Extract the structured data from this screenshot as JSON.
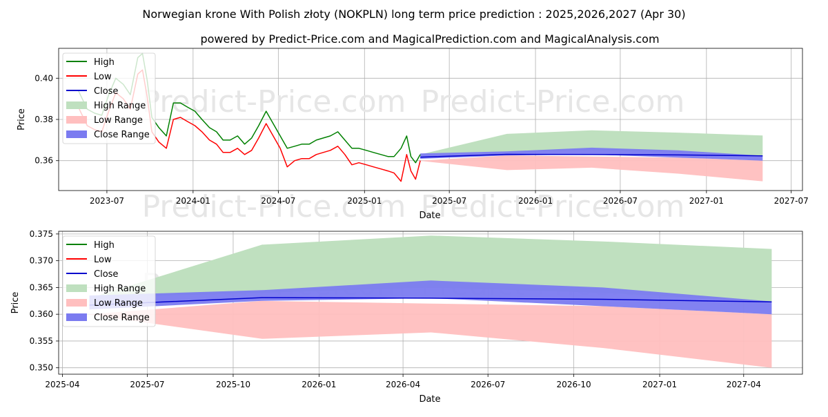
{
  "title": "Norwegian krone With Polish złoty (NOKPLN) long term price prediction : 2025,2026,2027 (Apr 30)",
  "subtitle": "powered by Predict-Price.com and MagicalPrediction.com and MagicalAnalysis.com",
  "watermark": "Predict-Price.com",
  "colors": {
    "high": "#008000",
    "low": "#ff0000",
    "close": "#0000cc",
    "high_range": "#bfe0bf",
    "low_range": "#ffbfbf",
    "close_range": "#7b7bf0",
    "grid": "#b0b0b0"
  },
  "chart_data": [
    {
      "type": "line",
      "panel": "long-term",
      "xlabel": "Date",
      "ylabel": "Price",
      "xlim": [
        "2023-03-20",
        "2027-07-25"
      ],
      "ylim": [
        0.3455,
        0.4145
      ],
      "xticks": [
        {
          "date": "2023-07-01",
          "label": "2023-07"
        },
        {
          "date": "2024-01-01",
          "label": "2024-01"
        },
        {
          "date": "2024-07-01",
          "label": "2024-07"
        },
        {
          "date": "2025-01-01",
          "label": "2025-01"
        },
        {
          "date": "2025-07-01",
          "label": "2025-07"
        },
        {
          "date": "2026-01-01",
          "label": "2026-01"
        },
        {
          "date": "2026-07-01",
          "label": "2026-07"
        },
        {
          "date": "2027-01-01",
          "label": "2027-01"
        },
        {
          "date": "2027-07-01",
          "label": "2027-07"
        }
      ],
      "yticks": [
        {
          "value": 0.36,
          "label": "0.36"
        },
        {
          "value": 0.38,
          "label": "0.38"
        },
        {
          "value": 0.4,
          "label": "0.40"
        }
      ],
      "legend": [
        "High",
        "Low",
        "Close",
        "High Range",
        "Low Range",
        "Close Range"
      ],
      "legend_position": "top-left",
      "history": {
        "dates": [
          "2023-05-01",
          "2023-05-20",
          "2023-06-05",
          "2023-06-20",
          "2023-07-05",
          "2023-07-20",
          "2023-08-05",
          "2023-08-20",
          "2023-09-05",
          "2023-09-15",
          "2023-09-25",
          "2023-10-05",
          "2023-10-20",
          "2023-11-05",
          "2023-11-20",
          "2023-12-05",
          "2023-12-20",
          "2024-01-05",
          "2024-01-20",
          "2024-02-05",
          "2024-02-20",
          "2024-03-05",
          "2024-03-20",
          "2024-04-05",
          "2024-04-20",
          "2024-05-05",
          "2024-05-20",
          "2024-06-05",
          "2024-06-20",
          "2024-07-05",
          "2024-07-20",
          "2024-08-05",
          "2024-08-20",
          "2024-09-05",
          "2024-09-20",
          "2024-10-05",
          "2024-10-20",
          "2024-11-05",
          "2024-11-20",
          "2024-12-05",
          "2024-12-20",
          "2025-01-05",
          "2025-01-20",
          "2025-02-05",
          "2025-02-20",
          "2025-03-05",
          "2025-03-20",
          "2025-04-01",
          "2025-04-10",
          "2025-04-20",
          "2025-04-30"
        ],
        "high": [
          0.394,
          0.385,
          0.383,
          0.382,
          0.392,
          0.4,
          0.397,
          0.392,
          0.41,
          0.412,
          0.399,
          0.381,
          0.376,
          0.372,
          0.388,
          0.388,
          0.386,
          0.384,
          0.38,
          0.376,
          0.374,
          0.37,
          0.37,
          0.372,
          0.368,
          0.371,
          0.377,
          0.384,
          0.378,
          0.372,
          0.366,
          0.367,
          0.368,
          0.368,
          0.37,
          0.371,
          0.372,
          0.374,
          0.37,
          0.366,
          0.366,
          0.365,
          0.364,
          0.363,
          0.362,
          0.362,
          0.366,
          0.372,
          0.362,
          0.359,
          0.363
        ],
        "low": [
          0.386,
          0.377,
          0.375,
          0.374,
          0.384,
          0.393,
          0.39,
          0.385,
          0.402,
          0.404,
          0.391,
          0.374,
          0.369,
          0.366,
          0.38,
          0.381,
          0.379,
          0.377,
          0.374,
          0.37,
          0.368,
          0.364,
          0.364,
          0.366,
          0.363,
          0.365,
          0.371,
          0.378,
          0.372,
          0.366,
          0.357,
          0.36,
          0.361,
          0.361,
          0.363,
          0.364,
          0.365,
          0.367,
          0.363,
          0.358,
          0.359,
          0.358,
          0.357,
          0.356,
          0.355,
          0.354,
          0.35,
          0.363,
          0.355,
          0.351,
          0.36
        ],
        "close": [
          0.39,
          0.381,
          0.379,
          0.378,
          0.388,
          0.397,
          0.394,
          0.388,
          0.406,
          0.409,
          0.395,
          0.377,
          0.372,
          0.369,
          0.384,
          0.385,
          0.383,
          0.381,
          0.377,
          0.373,
          0.371,
          0.367,
          0.367,
          0.369,
          0.366,
          0.368,
          0.374,
          0.381,
          0.375,
          0.369,
          0.361,
          0.364,
          0.365,
          0.365,
          0.367,
          0.368,
          0.369,
          0.371,
          0.367,
          0.362,
          0.363,
          0.362,
          0.361,
          0.36,
          0.359,
          0.358,
          0.357,
          0.368,
          0.359,
          0.355,
          0.362
        ]
      },
      "forecast": {
        "dates": [
          "2025-04-30",
          "2025-11-01",
          "2026-05-01",
          "2026-11-01",
          "2027-05-01"
        ],
        "close": [
          0.3617,
          0.3631,
          0.363,
          0.3628,
          0.3623
        ],
        "high_range": [
          [
            0.363,
            0.363
          ],
          [
            0.364,
            0.373
          ],
          [
            0.365,
            0.3747
          ],
          [
            0.364,
            0.3736
          ],
          [
            0.3623,
            0.3722
          ]
        ],
        "low_range": [
          [
            0.3599,
            0.36
          ],
          [
            0.3554,
            0.3625
          ],
          [
            0.3566,
            0.362
          ],
          [
            0.3537,
            0.3615
          ],
          [
            0.35,
            0.36
          ]
        ],
        "close_range": [
          [
            0.3609,
            0.3635
          ],
          [
            0.3625,
            0.3645
          ],
          [
            0.363,
            0.3663
          ],
          [
            0.3615,
            0.365
          ],
          [
            0.36,
            0.3624
          ]
        ]
      }
    },
    {
      "type": "line",
      "panel": "forecast-zoom",
      "xlabel": "Date",
      "ylabel": "Price",
      "xlim": [
        "2025-03-28",
        "2027-06-03"
      ],
      "ylim": [
        0.3488,
        0.3755
      ],
      "xticks": [
        {
          "date": "2025-04-01",
          "label": "2025-04"
        },
        {
          "date": "2025-07-01",
          "label": "2025-07"
        },
        {
          "date": "2025-10-01",
          "label": "2025-10"
        },
        {
          "date": "2026-01-01",
          "label": "2026-01"
        },
        {
          "date": "2026-04-01",
          "label": "2026-04"
        },
        {
          "date": "2026-07-01",
          "label": "2026-07"
        },
        {
          "date": "2026-10-01",
          "label": "2026-10"
        },
        {
          "date": "2027-01-01",
          "label": "2027-01"
        },
        {
          "date": "2027-04-01",
          "label": "2027-04"
        }
      ],
      "yticks": [
        {
          "value": 0.35,
          "label": "0.350"
        },
        {
          "value": 0.355,
          "label": "0.355"
        },
        {
          "value": 0.36,
          "label": "0.360"
        },
        {
          "value": 0.365,
          "label": "0.365"
        },
        {
          "value": 0.37,
          "label": "0.370"
        },
        {
          "value": 0.375,
          "label": "0.375"
        }
      ],
      "legend": [
        "High",
        "Low",
        "Close",
        "High Range",
        "Low Range",
        "Close Range"
      ],
      "legend_position": "top-left",
      "forecast": {
        "dates": [
          "2025-04-30",
          "2025-11-01",
          "2026-05-01",
          "2026-11-01",
          "2027-05-01"
        ],
        "close": [
          0.3617,
          0.3631,
          0.363,
          0.3628,
          0.3623
        ],
        "high_range": [
          [
            0.363,
            0.363
          ],
          [
            0.364,
            0.373
          ],
          [
            0.365,
            0.3747
          ],
          [
            0.364,
            0.3736
          ],
          [
            0.3623,
            0.3722
          ]
        ],
        "low_range": [
          [
            0.3599,
            0.36
          ],
          [
            0.3554,
            0.3625
          ],
          [
            0.3566,
            0.362
          ],
          [
            0.3537,
            0.3615
          ],
          [
            0.35,
            0.36
          ]
        ],
        "close_range": [
          [
            0.3609,
            0.3635
          ],
          [
            0.3625,
            0.3645
          ],
          [
            0.363,
            0.3663
          ],
          [
            0.3615,
            0.365
          ],
          [
            0.36,
            0.3624
          ]
        ]
      }
    }
  ]
}
